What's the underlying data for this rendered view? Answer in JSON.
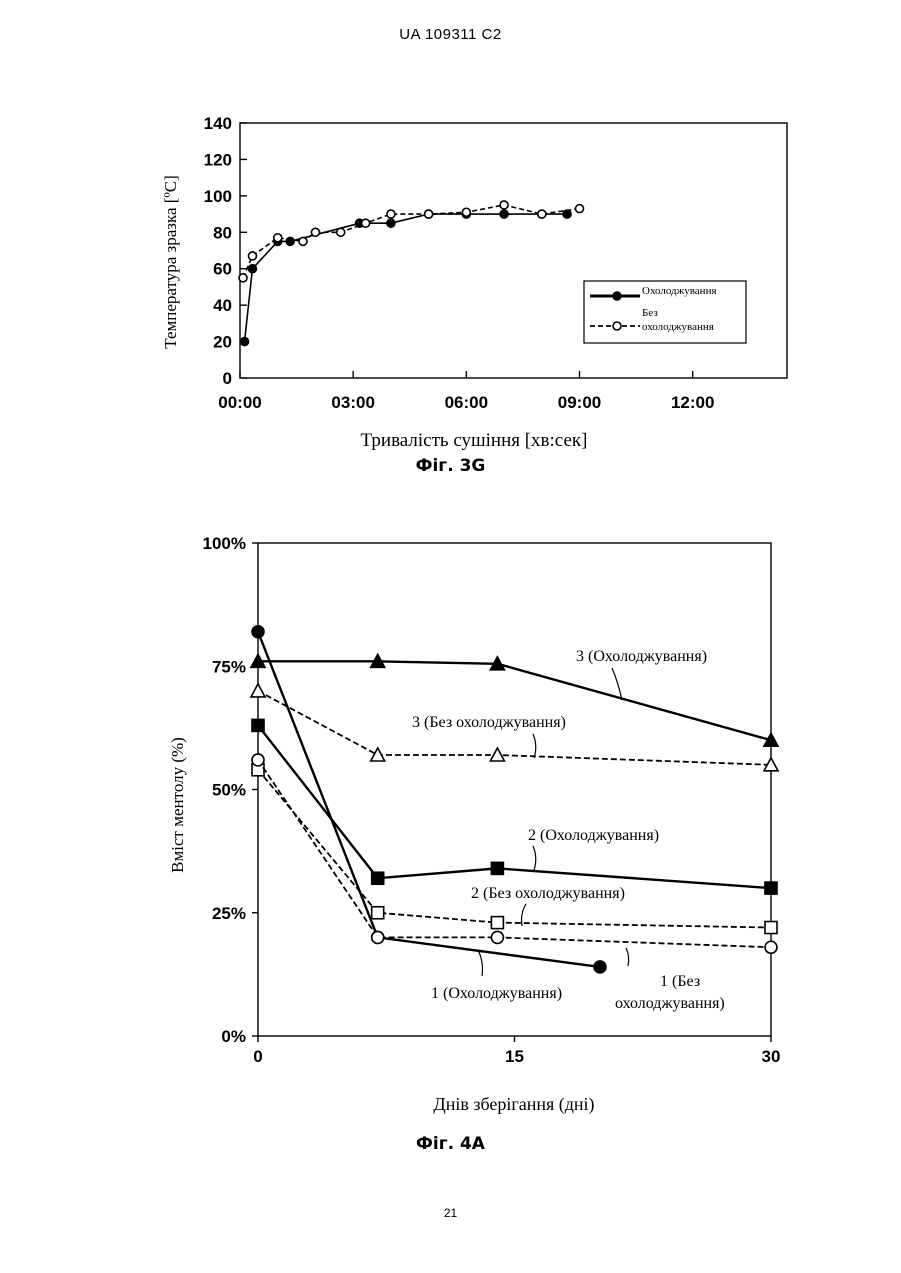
{
  "header": {
    "code": "UA   109311   C2"
  },
  "figures": [
    {
      "caption": "Фіг. 3G"
    },
    {
      "caption": "Фіг. 4А"
    }
  ],
  "page_number": "21",
  "chart_data": [
    {
      "type": "line",
      "xlabel": "Тривалість сушіння [хв:сек]",
      "ylabel": "Температура зразка [ºC]",
      "xlim": [
        0,
        14.5
      ],
      "ylim": [
        0,
        140
      ],
      "x_ticks": [
        0,
        3,
        6,
        9,
        12
      ],
      "x_tick_labels": [
        "00:00",
        "03:00",
        "06:00",
        "09:00",
        "12:00"
      ],
      "y_ticks": [
        0,
        20,
        40,
        60,
        80,
        100,
        120,
        140
      ],
      "y_tick_labels": [
        "0",
        "20",
        "40",
        "60",
        "80",
        "100",
        "120",
        "140"
      ],
      "legend_position": "right",
      "series": [
        {
          "name": "Охолоджування",
          "style": "solid-filled",
          "x": [
            0.12,
            0.33,
            1.0,
            1.33,
            3.17,
            4.0,
            5.0,
            6.0,
            7.0,
            8.0,
            8.67
          ],
          "y": [
            20,
            60,
            75,
            75,
            85,
            85,
            90,
            90,
            90,
            90,
            90
          ]
        },
        {
          "name": "Без\nохолоджування",
          "style": "dashed-open",
          "x": [
            0.08,
            0.33,
            1.0,
            1.67,
            2.0,
            2.67,
            3.33,
            4.0,
            5.0,
            6.0,
            7.0,
            8.0,
            9.0
          ],
          "y": [
            55,
            67,
            77,
            75,
            80,
            80,
            85,
            90,
            90,
            91,
            95,
            90,
            93
          ]
        }
      ]
    },
    {
      "type": "line",
      "xlabel": "Днів зберігання (дні)",
      "ylabel": "Вміст ментолу (%)",
      "xlim": [
        0,
        30
      ],
      "ylim": [
        0,
        100
      ],
      "x_ticks": [
        0,
        15,
        30
      ],
      "x_tick_labels": [
        "0",
        "15",
        "30"
      ],
      "y_ticks": [
        0,
        25,
        50,
        75,
        100
      ],
      "y_tick_labels": [
        "0%",
        "25%",
        "50%",
        "75%",
        "100%"
      ],
      "series": [
        {
          "name": "3 (Охолоджування)",
          "marker": "triangle-filled",
          "dash": false,
          "x": [
            0,
            7,
            14,
            30
          ],
          "y": [
            76,
            76,
            75.5,
            60
          ]
        },
        {
          "name": "3 (Без охолоджування)",
          "marker": "triangle-open",
          "dash": true,
          "x": [
            0,
            7,
            14,
            30
          ],
          "y": [
            70,
            57,
            57,
            55
          ]
        },
        {
          "name": "2  (Охолоджування)",
          "marker": "square-filled",
          "dash": false,
          "x": [
            0,
            7,
            14,
            30
          ],
          "y": [
            63,
            32,
            34,
            30
          ]
        },
        {
          "name": "2 (Без охолоджування)",
          "marker": "square-open",
          "dash": true,
          "x": [
            0,
            7,
            14,
            30
          ],
          "y": [
            54,
            25,
            23,
            22
          ]
        },
        {
          "name": "1 (Охолоджування)",
          "marker": "circle-filled",
          "dash": false,
          "x": [
            0,
            7,
            20
          ],
          "y": [
            82,
            20,
            14
          ]
        },
        {
          "name": "1 (Без\nохолоджування)",
          "marker": "circle-open",
          "dash": true,
          "x": [
            0,
            7,
            14,
            30
          ],
          "y": [
            56,
            20,
            20,
            18
          ]
        }
      ]
    }
  ]
}
